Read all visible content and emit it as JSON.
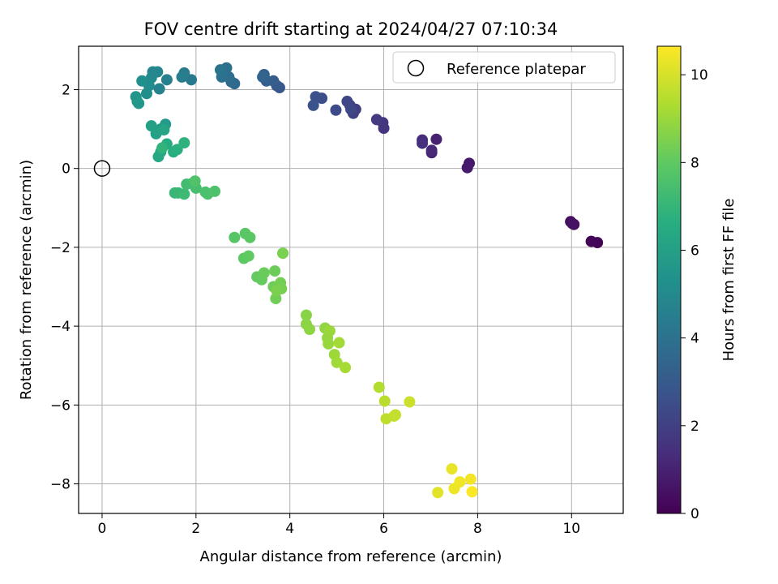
{
  "chart_data": {
    "type": "scatter",
    "title": "FOV centre drift starting at 2024/04/27 07:10:34",
    "xlabel": "Angular distance from reference (arcmin)",
    "ylabel": "Rotation from reference (arcmin)",
    "xlim": [
      -0.5,
      11.1
    ],
    "ylim": [
      -8.75,
      3.1
    ],
    "x_ticks": [
      0,
      2,
      4,
      6,
      8,
      10
    ],
    "y_ticks": [
      -8,
      -6,
      -4,
      -2,
      0,
      2
    ],
    "grid": true,
    "legend": {
      "placement": "top-right",
      "entries": [
        "Reference platepar"
      ]
    },
    "reference_point": {
      "x": 0,
      "y": 0
    },
    "colorbar": {
      "label": "Hours from first FF file",
      "colormap": "viridis",
      "range": [
        0,
        10.65
      ],
      "ticks": [
        0,
        2,
        4,
        6,
        8,
        10
      ]
    },
    "points": [
      [
        10.55,
        -1.88,
        0.05
      ],
      [
        10.42,
        -1.85,
        0.15
      ],
      [
        10.05,
        -1.42,
        0.3
      ],
      [
        9.98,
        -1.35,
        0.4
      ],
      [
        10.02,
        -1.4,
        0.5
      ],
      [
        7.82,
        0.13,
        0.7
      ],
      [
        7.78,
        0.02,
        0.8
      ],
      [
        7.12,
        0.74,
        1.0
      ],
      [
        7.02,
        0.4,
        1.1
      ],
      [
        7.02,
        0.46,
        1.2
      ],
      [
        6.82,
        0.72,
        1.3
      ],
      [
        6.82,
        0.64,
        1.4
      ],
      [
        6.0,
        1.02,
        1.6
      ],
      [
        5.98,
        1.16,
        1.7
      ],
      [
        5.85,
        1.24,
        1.8
      ],
      [
        5.4,
        1.5,
        1.9
      ],
      [
        5.35,
        1.4,
        2.0
      ],
      [
        5.28,
        1.6,
        2.1
      ],
      [
        5.22,
        1.7,
        2.2
      ],
      [
        5.3,
        1.5,
        2.3
      ],
      [
        4.98,
        1.48,
        2.4
      ],
      [
        4.68,
        1.78,
        2.5
      ],
      [
        4.55,
        1.82,
        2.6
      ],
      [
        4.5,
        1.6,
        2.7
      ],
      [
        3.78,
        2.05,
        2.9
      ],
      [
        3.72,
        2.1,
        3.0
      ],
      [
        3.65,
        2.22,
        3.1
      ],
      [
        3.5,
        2.22,
        3.2
      ],
      [
        3.45,
        2.38,
        3.3
      ],
      [
        3.42,
        2.32,
        3.4
      ],
      [
        2.82,
        2.15,
        3.6
      ],
      [
        2.75,
        2.2,
        3.7
      ],
      [
        2.7,
        2.32,
        3.8
      ],
      [
        2.65,
        2.55,
        3.9
      ],
      [
        2.55,
        2.32,
        4.0
      ],
      [
        2.52,
        2.5,
        4.1
      ],
      [
        1.9,
        2.25,
        4.3
      ],
      [
        1.75,
        2.42,
        4.4
      ],
      [
        1.7,
        2.32,
        4.5
      ],
      [
        1.38,
        2.25,
        4.6
      ],
      [
        1.22,
        2.02,
        4.7
      ],
      [
        1.18,
        2.45,
        4.8
      ],
      [
        1.08,
        2.45,
        4.9
      ],
      [
        1.05,
        2.3,
        5.0
      ],
      [
        1.0,
        2.1,
        5.1
      ],
      [
        0.95,
        1.9,
        5.2
      ],
      [
        0.85,
        2.22,
        5.3
      ],
      [
        0.75,
        1.7,
        5.4
      ],
      [
        0.72,
        1.82,
        5.5
      ],
      [
        0.78,
        1.65,
        5.6
      ],
      [
        1.35,
        1.12,
        5.8
      ],
      [
        1.25,
        1.0,
        5.9
      ],
      [
        1.05,
        1.08,
        6.0
      ],
      [
        1.15,
        0.88,
        6.1
      ],
      [
        1.32,
        0.98,
        6.2
      ],
      [
        1.25,
        0.42,
        6.3
      ],
      [
        1.2,
        0.3,
        6.4
      ],
      [
        1.38,
        0.62,
        6.5
      ],
      [
        1.52,
        0.42,
        6.6
      ],
      [
        1.6,
        0.48,
        6.7
      ],
      [
        1.75,
        0.65,
        6.8
      ],
      [
        1.28,
        0.52,
        6.9
      ],
      [
        1.62,
        -0.62,
        7.0
      ],
      [
        1.55,
        -0.62,
        7.1
      ],
      [
        1.75,
        -0.65,
        7.2
      ],
      [
        1.8,
        -0.4,
        7.3
      ],
      [
        1.92,
        -0.38,
        7.35
      ],
      [
        2.0,
        -0.5,
        7.4
      ],
      [
        2.2,
        -0.6,
        7.5
      ],
      [
        2.25,
        -0.65,
        7.55
      ],
      [
        2.4,
        -0.58,
        7.6
      ],
      [
        1.98,
        -0.32,
        7.65
      ],
      [
        2.82,
        -1.75,
        7.8
      ],
      [
        3.05,
        -1.65,
        7.85
      ],
      [
        3.15,
        -1.75,
        7.9
      ],
      [
        3.02,
        -2.28,
        7.95
      ],
      [
        3.12,
        -2.22,
        8.0
      ],
      [
        3.3,
        -2.75,
        8.05
      ],
      [
        3.4,
        -2.82,
        8.1
      ],
      [
        3.45,
        -2.65,
        8.15
      ],
      [
        3.68,
        -2.6,
        8.2
      ],
      [
        3.65,
        -3.0,
        8.25
      ],
      [
        3.7,
        -3.3,
        8.3
      ],
      [
        3.8,
        -2.9,
        8.35
      ],
      [
        3.82,
        -3.05,
        8.4
      ],
      [
        3.85,
        -2.15,
        8.45
      ],
      [
        3.72,
        -3.1,
        8.5
      ],
      [
        4.35,
        -3.72,
        8.7
      ],
      [
        4.35,
        -3.95,
        8.75
      ],
      [
        4.42,
        -4.08,
        8.8
      ],
      [
        4.75,
        -4.05,
        8.85
      ],
      [
        4.8,
        -4.3,
        8.9
      ],
      [
        4.82,
        -4.45,
        8.95
      ],
      [
        4.85,
        -4.12,
        9.0
      ],
      [
        4.95,
        -4.72,
        9.05
      ],
      [
        5.0,
        -4.92,
        9.1
      ],
      [
        5.05,
        -4.42,
        9.15
      ],
      [
        5.18,
        -5.05,
        9.2
      ],
      [
        5.9,
        -5.55,
        9.4
      ],
      [
        6.02,
        -5.9,
        9.5
      ],
      [
        6.05,
        -6.35,
        9.6
      ],
      [
        6.22,
        -6.28,
        9.65
      ],
      [
        6.25,
        -6.25,
        9.7
      ],
      [
        6.55,
        -5.92,
        9.8
      ],
      [
        7.15,
        -8.22,
        10.2
      ],
      [
        7.45,
        -7.62,
        10.3
      ],
      [
        7.5,
        -8.12,
        10.4
      ],
      [
        7.62,
        -7.95,
        10.45
      ],
      [
        7.85,
        -7.88,
        10.5
      ],
      [
        7.88,
        -8.2,
        10.6
      ]
    ]
  }
}
